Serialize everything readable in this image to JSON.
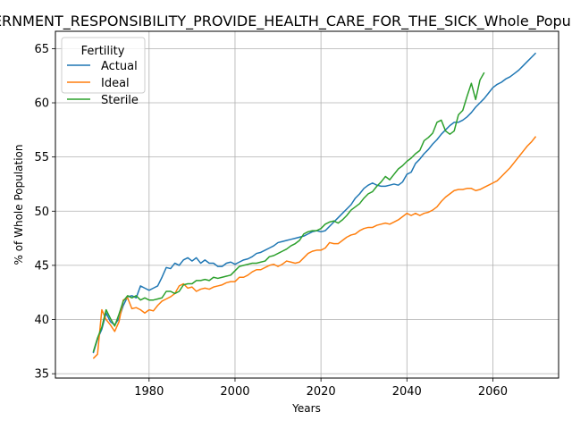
{
  "chart_data": {
    "type": "line",
    "title": "GOVERNMENT_RESPONSIBILITY_PROVIDE_HEALTH_CARE_FOR_THE_SICK_Whole_Population",
    "xlabel": "Years",
    "ylabel": "% of Whole Population",
    "xlim": [
      1958.2,
      2075.3
    ],
    "ylim": [
      34.6,
      66.6
    ],
    "xticks": [
      1980,
      2000,
      2020,
      2040,
      2060
    ],
    "xtick_labels": [
      "1980",
      "2000",
      "2020",
      "2040",
      "2060"
    ],
    "yticks": [
      35,
      40,
      45,
      50,
      55,
      60,
      65
    ],
    "ytick_labels": [
      "35",
      "40",
      "45",
      "50",
      "55",
      "60",
      "65"
    ],
    "grid": true,
    "legend": {
      "title": "Fertility",
      "placement": "top-left"
    },
    "series": [
      {
        "name": "Actual",
        "color": "#1f77b4",
        "x": [
          1967,
          1968,
          1969,
          1970,
          1971,
          1972,
          1973,
          1974,
          1975,
          1976,
          1977,
          1978,
          1979,
          1980,
          1981,
          1982,
          1983,
          1984,
          1985,
          1986,
          1987,
          1988,
          1989,
          1990,
          1991,
          1992,
          1993,
          1994,
          1995,
          1996,
          1997,
          1998,
          1999,
          2000,
          2001,
          2002,
          2003,
          2004,
          2005,
          2006,
          2007,
          2008,
          2009,
          2010,
          2011,
          2012,
          2013,
          2014,
          2015,
          2016,
          2017,
          2018,
          2019,
          2020,
          2021,
          2022,
          2023,
          2024,
          2025,
          2026,
          2027,
          2028,
          2029,
          2030,
          2031,
          2032,
          2033,
          2034,
          2035,
          2036,
          2037,
          2038,
          2039,
          2040,
          2041,
          2042,
          2043,
          2044,
          2045,
          2046,
          2047,
          2048,
          2049,
          2050,
          2051,
          2052,
          2053,
          2054,
          2055,
          2056,
          2057,
          2058,
          2059,
          2060,
          2061,
          2062,
          2063,
          2064,
          2065,
          2066,
          2067,
          2068,
          2069,
          2070
        ],
        "values": [
          36.9,
          38.2,
          39.1,
          40.6,
          39.8,
          39.5,
          40.1,
          41.3,
          42.1,
          42.2,
          42.0,
          43.1,
          42.9,
          42.7,
          42.9,
          43.1,
          43.9,
          44.8,
          44.7,
          45.2,
          45.0,
          45.5,
          45.7,
          45.4,
          45.7,
          45.2,
          45.5,
          45.2,
          45.2,
          44.9,
          44.9,
          45.2,
          45.3,
          45.1,
          45.3,
          45.5,
          45.6,
          45.8,
          46.1,
          46.2,
          46.4,
          46.6,
          46.8,
          47.1,
          47.2,
          47.3,
          47.4,
          47.5,
          47.6,
          47.7,
          47.9,
          48.1,
          48.2,
          48.1,
          48.2,
          48.6,
          49.0,
          49.4,
          49.8,
          50.2,
          50.6,
          51.2,
          51.6,
          52.1,
          52.4,
          52.6,
          52.4,
          52.3,
          52.3,
          52.4,
          52.5,
          52.4,
          52.7,
          53.4,
          53.6,
          54.4,
          54.8,
          55.3,
          55.7,
          56.2,
          56.6,
          57.1,
          57.5,
          57.9,
          58.2,
          58.2,
          58.4,
          58.7,
          59.1,
          59.6,
          60.0,
          60.4,
          60.9,
          61.4,
          61.7,
          61.9,
          62.2,
          62.4,
          62.7,
          63.0,
          63.4,
          63.8,
          64.2,
          64.6
        ]
      },
      {
        "name": "Ideal",
        "color": "#ff7f0e",
        "x": [
          1967,
          1968,
          1969,
          1970,
          1971,
          1972,
          1973,
          1974,
          1975,
          1976,
          1977,
          1978,
          1979,
          1980,
          1981,
          1982,
          1983,
          1984,
          1985,
          1986,
          1987,
          1988,
          1989,
          1990,
          1991,
          1992,
          1993,
          1994,
          1995,
          1996,
          1997,
          1998,
          1999,
          2000,
          2001,
          2002,
          2003,
          2004,
          2005,
          2006,
          2007,
          2008,
          2009,
          2010,
          2011,
          2012,
          2013,
          2014,
          2015,
          2016,
          2017,
          2018,
          2019,
          2020,
          2021,
          2022,
          2023,
          2024,
          2025,
          2026,
          2027,
          2028,
          2029,
          2030,
          2031,
          2032,
          2033,
          2034,
          2035,
          2036,
          2037,
          2038,
          2039,
          2040,
          2041,
          2042,
          2043,
          2044,
          2045,
          2046,
          2047,
          2048,
          2049,
          2050,
          2051,
          2052,
          2053,
          2054,
          2055,
          2056,
          2057,
          2058,
          2059,
          2060,
          2061,
          2062,
          2063,
          2064,
          2065,
          2066,
          2067,
          2068,
          2069,
          2070
        ],
        "values": [
          36.4,
          36.8,
          40.9,
          40.0,
          39.5,
          38.9,
          39.8,
          41.8,
          42.0,
          41.0,
          41.1,
          40.9,
          40.6,
          40.9,
          40.8,
          41.3,
          41.7,
          41.9,
          42.1,
          42.4,
          43.1,
          43.3,
          42.9,
          43.0,
          42.6,
          42.8,
          42.9,
          42.8,
          43.0,
          43.1,
          43.2,
          43.4,
          43.5,
          43.5,
          43.9,
          43.9,
          44.1,
          44.4,
          44.6,
          44.6,
          44.8,
          45.0,
          45.1,
          44.9,
          45.1,
          45.4,
          45.3,
          45.2,
          45.3,
          45.7,
          46.1,
          46.3,
          46.4,
          46.4,
          46.6,
          47.1,
          47.0,
          47.0,
          47.3,
          47.6,
          47.8,
          47.9,
          48.2,
          48.4,
          48.5,
          48.5,
          48.7,
          48.8,
          48.9,
          48.8,
          49.0,
          49.2,
          49.5,
          49.8,
          49.6,
          49.8,
          49.6,
          49.8,
          49.9,
          50.1,
          50.4,
          50.9,
          51.3,
          51.6,
          51.9,
          52.0,
          52.0,
          52.1,
          52.1,
          51.9,
          52.0,
          52.2,
          52.4,
          52.6,
          52.8,
          53.2,
          53.6,
          54.0,
          54.5,
          55.0,
          55.5,
          56.0,
          56.4,
          56.9
        ]
      },
      {
        "name": "Sterile",
        "color": "#2ca02c",
        "x": [
          1967,
          1968,
          1969,
          1970,
          1971,
          1972,
          1973,
          1974,
          1975,
          1976,
          1977,
          1978,
          1979,
          1980,
          1981,
          1982,
          1983,
          1984,
          1985,
          1986,
          1987,
          1988,
          1989,
          1990,
          1991,
          1992,
          1993,
          1994,
          1995,
          1996,
          1997,
          1998,
          1999,
          2000,
          2001,
          2002,
          2003,
          2004,
          2005,
          2006,
          2007,
          2008,
          2009,
          2010,
          2011,
          2012,
          2013,
          2014,
          2015,
          2016,
          2017,
          2018,
          2019,
          2020,
          2021,
          2022,
          2023,
          2024,
          2025,
          2026,
          2027,
          2028,
          2029,
          2030,
          2031,
          2032,
          2033,
          2034,
          2035,
          2036,
          2037,
          2038,
          2039,
          2040,
          2041,
          2042,
          2043,
          2044,
          2045,
          2046,
          2047,
          2048,
          2049,
          2050,
          2051,
          2052,
          2053,
          2054,
          2055,
          2056,
          2057,
          2058
        ],
        "values": [
          37.0,
          38.3,
          39.3,
          40.9,
          40.1,
          39.4,
          40.5,
          41.7,
          42.2,
          42.0,
          42.2,
          41.8,
          42.0,
          41.8,
          41.8,
          41.9,
          42.0,
          42.6,
          42.6,
          42.4,
          42.6,
          43.2,
          43.3,
          43.3,
          43.6,
          43.6,
          43.7,
          43.6,
          43.9,
          43.8,
          43.9,
          44.0,
          44.1,
          44.5,
          44.9,
          45.0,
          45.1,
          45.2,
          45.2,
          45.3,
          45.4,
          45.8,
          45.9,
          46.1,
          46.3,
          46.5,
          46.8,
          47.0,
          47.3,
          47.9,
          48.1,
          48.2,
          48.2,
          48.4,
          48.8,
          49.0,
          49.1,
          48.9,
          49.2,
          49.6,
          50.1,
          50.4,
          50.7,
          51.2,
          51.6,
          51.8,
          52.3,
          52.7,
          53.2,
          52.9,
          53.4,
          53.9,
          54.2,
          54.6,
          54.9,
          55.3,
          55.6,
          56.5,
          56.8,
          57.2,
          58.2,
          58.4,
          57.4,
          57.1,
          57.4,
          58.9,
          59.3,
          60.6,
          61.8,
          60.3,
          62.1,
          62.8
        ]
      }
    ]
  }
}
